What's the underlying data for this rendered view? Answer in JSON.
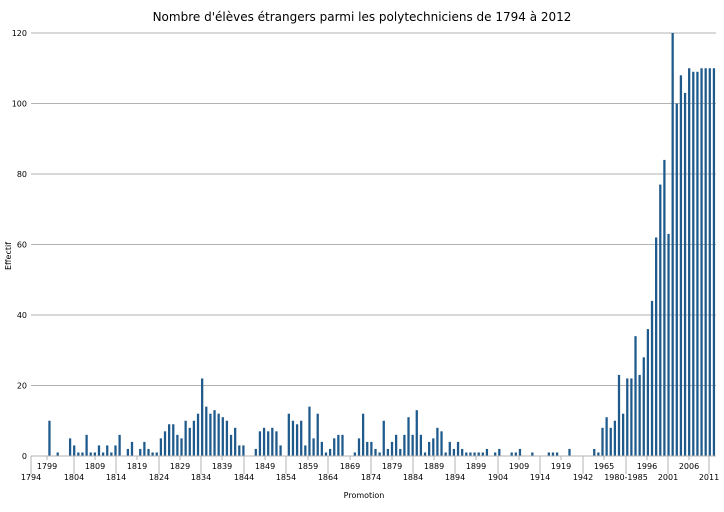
{
  "chart_data": {
    "type": "bar",
    "title": "Nombre d'élèves étrangers parmi les polytechniciens de 1794 à 2012",
    "xlabel": "Promotion",
    "ylabel": "Effectif",
    "ylim": [
      0,
      120
    ],
    "yticks": [
      0,
      20,
      40,
      60,
      80,
      100,
      120
    ],
    "grid": true,
    "legend": "none",
    "bar_color": "#1f5a8c",
    "xtick_labels_upper": [
      "1799",
      "1809",
      "1819",
      "1829",
      "1839",
      "1849",
      "1859",
      "1869",
      "1879",
      "1889",
      "1899",
      "1909",
      "1919",
      "1965",
      "1996",
      "2006"
    ],
    "xtick_labels_lower": [
      "1794",
      "1804",
      "1814",
      "1824",
      "1834",
      "1844",
      "1854",
      "1864",
      "1874",
      "1884",
      "1894",
      "1904",
      "1914",
      "1942",
      "1980-1985",
      "2001",
      "2011"
    ],
    "values": [
      0,
      0,
      0,
      10,
      0,
      1,
      0,
      0,
      5,
      3,
      1,
      1,
      6,
      1,
      1,
      3,
      1,
      3,
      1,
      3,
      6,
      0,
      2,
      4,
      0,
      2,
      4,
      2,
      1,
      1,
      5,
      7,
      9,
      9,
      6,
      5,
      10,
      8,
      10,
      12,
      22,
      14,
      12,
      13,
      12,
      11,
      10,
      6,
      8,
      3,
      3,
      0,
      0,
      2,
      7,
      8,
      7,
      8,
      7,
      3,
      0,
      12,
      10,
      9,
      10,
      3,
      14,
      5,
      12,
      4,
      1,
      2,
      5,
      6,
      6,
      0,
      0,
      1,
      5,
      12,
      4,
      4,
      2,
      1,
      10,
      2,
      4,
      6,
      2,
      6,
      11,
      6,
      13,
      6,
      1,
      4,
      5,
      8,
      7,
      1,
      4,
      2,
      4,
      2,
      1,
      1,
      1,
      1,
      1,
      2,
      0,
      1,
      2,
      0,
      0,
      1,
      1,
      2,
      0,
      0,
      1,
      0,
      0,
      0,
      1,
      1,
      1,
      0,
      0,
      2,
      0,
      0,
      0,
      0,
      0,
      2,
      1,
      8,
      11,
      8,
      10,
      23,
      12,
      22,
      22,
      34,
      23,
      28,
      36,
      44,
      62,
      77,
      84,
      63,
      120,
      100,
      108,
      103,
      110,
      109,
      109,
      110,
      110,
      110,
      110
    ]
  }
}
